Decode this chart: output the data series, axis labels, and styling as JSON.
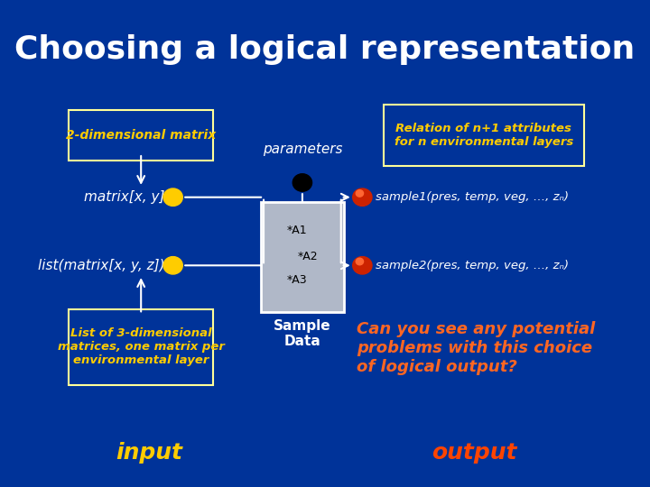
{
  "title": "Choosing a logical representation",
  "bg_color": "#003399",
  "title_color": "#ffffff",
  "title_fontsize": 26,
  "box1_text": "2-dimensional matrix",
  "box2_text": "Relation of n+1 attributes\nfor n environmental layers",
  "box3_text": "List of 3-dimensional\nmatrices, one matrix per\nenvironmental layer",
  "sample_label": "Sample\nData",
  "parameters_label": "parameters",
  "matrix_xy_label": "matrix[x, y]",
  "list_matrix_label": "list(matrix[x, y, z])",
  "sample1_label": "sample1(pres, temp, veg, …, zₙ)",
  "sample2_label": "sample2(pres, temp, veg, …, zₙ)",
  "input_label": "input",
  "output_label": "output",
  "can_you_text": "Can you see any potential\nproblems with this choice\nof logical output?",
  "yellow_color": "#ffcc00",
  "orange_red_color": "#ff4400",
  "white_color": "#ffffff",
  "box_bg": "#003399",
  "box_border": "#ffff99",
  "sample_box_bg": "#b0b8c8",
  "sample_box_border": "#ffffff"
}
